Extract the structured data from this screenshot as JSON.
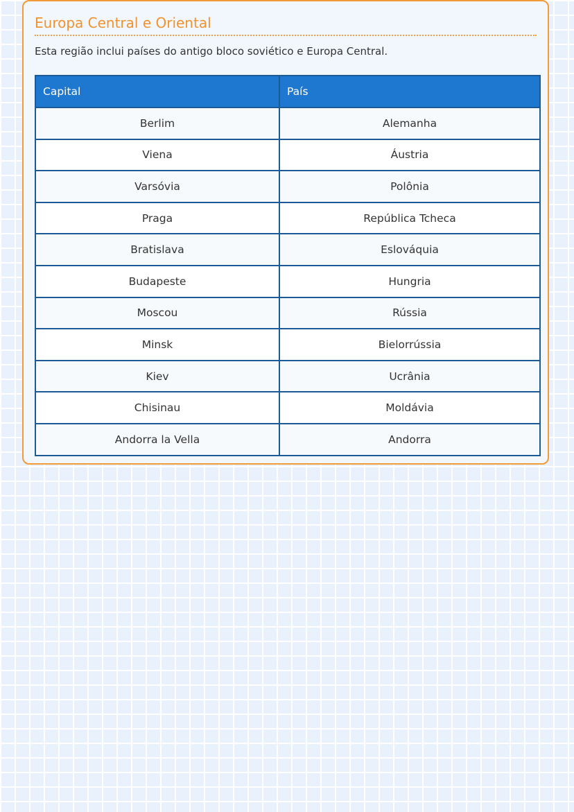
{
  "section": {
    "title": "Europa Central e Oriental",
    "description": "Esta região inclui países do antigo bloco soviético e Europa Central."
  },
  "table": {
    "headers": [
      "Capital",
      "País"
    ],
    "rows": [
      [
        "Berlim",
        "Alemanha"
      ],
      [
        "Viena",
        "Áustria"
      ],
      [
        "Varsóvia",
        "Polônia"
      ],
      [
        "Praga",
        "República Tcheca"
      ],
      [
        "Bratislava",
        "Eslováquia"
      ],
      [
        "Budapeste",
        "Hungria"
      ],
      [
        "Moscou",
        "Rússia"
      ],
      [
        "Minsk",
        "Bielorrússia"
      ],
      [
        "Kiev",
        "Ucrânia"
      ],
      [
        "Chisinau",
        "Moldávia"
      ],
      [
        "Andorra la Vella",
        "Andorra"
      ]
    ]
  },
  "colors": {
    "accent": "#f29a38",
    "header": "#1e78d0",
    "border": "#1b5a96"
  }
}
